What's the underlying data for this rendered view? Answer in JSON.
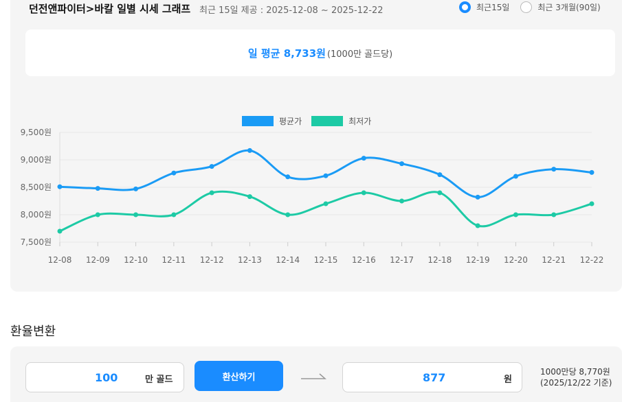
{
  "header": {
    "title": "던전앤파이터>바칼 일별 시세 그래프",
    "subtitle": "최근 15일 제공 : 2025-12-08 ~ 2025-12-22",
    "range_options": [
      {
        "label": "최근15일",
        "selected": true
      },
      {
        "label": "최근 3개월(90일)",
        "selected": false
      }
    ]
  },
  "summary": {
    "average_label": "일 평균 8,733원",
    "unit_label": "(1000만 골드당)"
  },
  "chart_data": {
    "type": "line",
    "categories": [
      "12-08",
      "12-09",
      "12-10",
      "12-11",
      "12-12",
      "12-13",
      "12-14",
      "12-15",
      "12-16",
      "12-17",
      "12-18",
      "12-19",
      "12-20",
      "12-21",
      "12-22"
    ],
    "series": [
      {
        "name": "평균가",
        "color": "#1a9bf5",
        "values": [
          8510,
          8480,
          8470,
          8760,
          8880,
          9170,
          8690,
          8710,
          9030,
          8930,
          8730,
          8320,
          8700,
          8830,
          8770
        ]
      },
      {
        "name": "최저가",
        "color": "#1dcaa5",
        "values": [
          7700,
          8000,
          8000,
          8000,
          8400,
          8330,
          8000,
          8200,
          8400,
          8250,
          8400,
          7800,
          8000,
          8000,
          8200
        ]
      }
    ],
    "ylim": [
      7500,
      9500
    ],
    "yticks": [
      7500,
      8000,
      8500,
      9000,
      9500
    ],
    "ytick_labels": [
      "7,500원",
      "8,000원",
      "8,500원",
      "9,000원",
      "9,500원"
    ],
    "legend": "top-center",
    "grid": true
  },
  "converter": {
    "section_title": "환율변환",
    "gold_value": "100",
    "gold_unit": "만 골드",
    "button_label": "환산하기",
    "result_value": "877",
    "result_unit": "원",
    "rate_line1": "1000만당 8,770원",
    "rate_line2": "(2025/12/22 기준)"
  },
  "colors": {
    "accent": "#1a8cff",
    "avg_line": "#1a9bf5",
    "low_line": "#1dcaa5"
  }
}
